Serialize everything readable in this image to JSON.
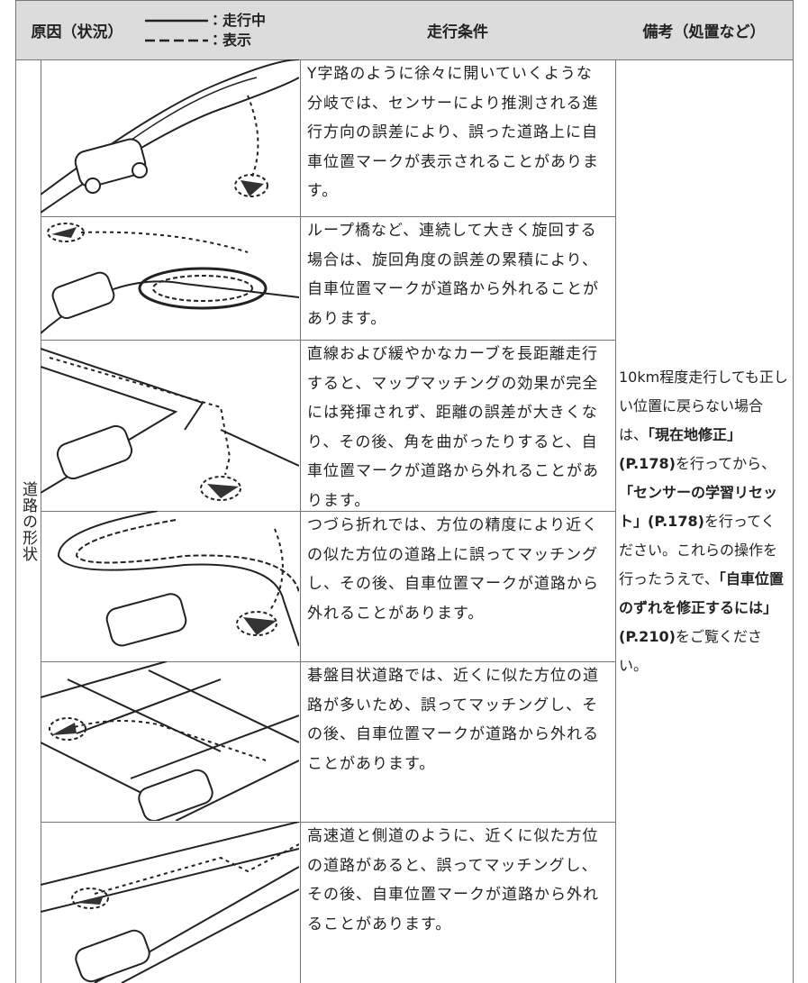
{
  "header": {
    "cause": "原因（状況）",
    "legend_driving": "：走行中",
    "legend_display": "：表示",
    "condition": "走行条件",
    "remarks": "備考（処置など）"
  },
  "category": "道路の形状",
  "rows": [
    {
      "condition": "Y字路のように徐々に開いていくような分岐では、センサーにより推測される進行方向の誤差により、誤った道路上に自車位置マークが表示されることがあります。"
    },
    {
      "condition": "ループ橋など、連続して大きく旋回する場合は、旋回角度の誤差の累積により、自車位置マークが道路から外れることがあります。"
    },
    {
      "condition": "直線および緩やかなカーブを長距離走行すると、マップマッチングの効果が完全には発揮されず、距離の誤差が大きくなり、その後、角を曲がったりすると、自車位置マークが道路から外れることがあります。"
    },
    {
      "condition": "つづら折れでは、方位の精度により近くの似た方位の道路上に誤ってマッチングし、その後、自車位置マークが道路から外れることがあります。"
    },
    {
      "condition": "碁盤目状道路では、近くに似た方位の道路が多いため、誤ってマッチングし、その後、自車位置マークが道路から外れることがあります。"
    },
    {
      "condition": "高速道と側道のように、近くに似た方位の道路があると、誤ってマッチングし、その後、自車位置マークが道路から外れることがあります。"
    }
  ],
  "remarks": [
    {
      "text": "10km程度走行しても正しい位置に戻らない場合は、",
      "bold": false
    },
    {
      "text": "「現在地修正」(P.178)",
      "bold": true
    },
    {
      "text": "を行ってから、",
      "bold": false
    },
    {
      "text": "「センサーの学習リセット」(P.178)",
      "bold": true
    },
    {
      "text": "を行ってください。これらの操作を行ったうえで、",
      "bold": false
    },
    {
      "text": "「自車位置のずれを修正するには」(P.210)",
      "bold": true
    },
    {
      "text": "をご覧ください。",
      "bold": false
    }
  ]
}
